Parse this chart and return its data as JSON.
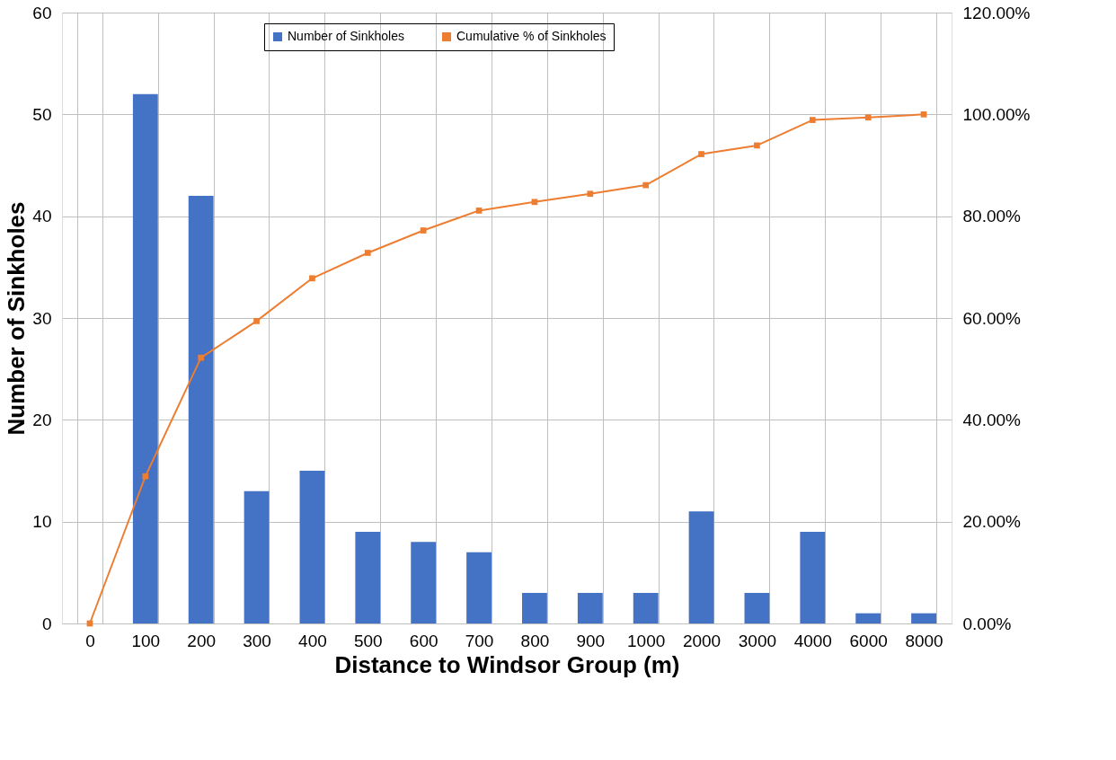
{
  "chart_data": {
    "type": "bar",
    "xlabel": "Distance to Windsor Group (m)",
    "ylabel": "Number of Sinkholes",
    "categories": [
      "0",
      "100",
      "200",
      "300",
      "400",
      "500",
      "600",
      "700",
      "800",
      "900",
      "1000",
      "2000",
      "3000",
      "4000",
      "6000",
      "8000"
    ],
    "series": [
      {
        "name": "Number of Sinkholes",
        "color": "#4472c4",
        "values": [
          null,
          52,
          42,
          13,
          15,
          9,
          8,
          7,
          3,
          3,
          3,
          11,
          3,
          9,
          1,
          1
        ]
      },
      {
        "name": "Cumulative % of Sinkholes",
        "type": "line",
        "axis": "y2",
        "color": "#ed7d31",
        "marker": "square",
        "values": [
          0,
          28.9,
          52.2,
          59.4,
          67.8,
          72.8,
          77.2,
          81.1,
          82.8,
          84.4,
          86.1,
          92.2,
          93.9,
          98.9,
          99.4,
          100
        ]
      }
    ],
    "ylim": [
      0,
      60
    ],
    "yticks": [
      0,
      10,
      20,
      30,
      40,
      50,
      60
    ],
    "y2lim": [
      0,
      120
    ],
    "y2ticks": [
      {
        "value": 0,
        "label": "0.00%"
      },
      {
        "value": 20,
        "label": "20.00%"
      },
      {
        "value": 40,
        "label": "40.00%"
      },
      {
        "value": 60,
        "label": "60.00%"
      },
      {
        "value": 80,
        "label": "80.00%"
      },
      {
        "value": 100,
        "label": "100.00%"
      },
      {
        "value": 120,
        "label": "120.00%"
      }
    ],
    "grid": true,
    "legend": "top"
  }
}
